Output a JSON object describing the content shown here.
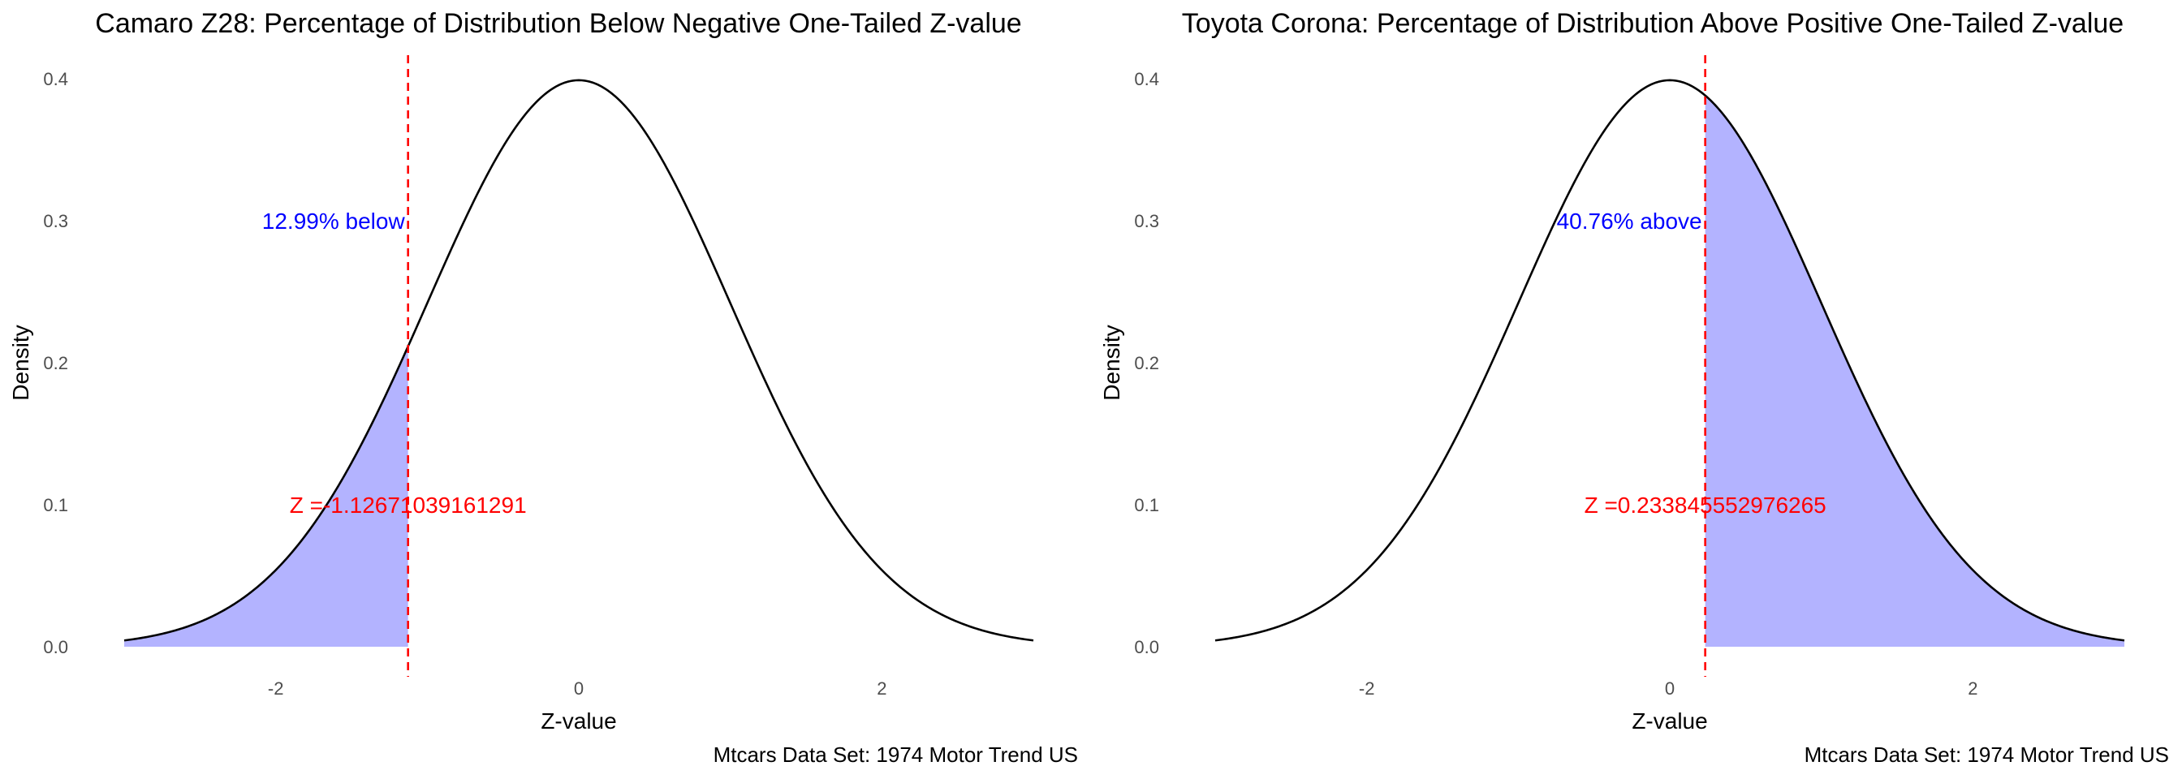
{
  "chart_data": [
    {
      "type": "area",
      "title": "Camaro Z28: Percentage of Distribution Below Negative One-Tailed Z-value",
      "xlabel": "Z-value",
      "ylabel": "Density",
      "xlim": [
        -3,
        3
      ],
      "ylim": [
        0,
        0.4
      ],
      "x_ticks": [
        -2,
        0,
        2
      ],
      "y_ticks": [
        0.0,
        0.1,
        0.2,
        0.3,
        0.4
      ],
      "x_tick_labels": [
        "-2",
        "0",
        "2"
      ],
      "y_tick_labels": [
        "0.0",
        "0.1",
        "0.2",
        "0.3",
        "0.4"
      ],
      "grid": false,
      "curve": "standard normal density",
      "z_value": -1.12671039161291,
      "shaded": "below",
      "percent_label": "12.99% below",
      "percent_label_position": {
        "x": -1.12671039161291,
        "y": 0.3
      },
      "z_label": "Z =-1.12671039161291",
      "z_label_position": {
        "x": -1.12671039161291,
        "y": 0.1
      },
      "caption": "Mtcars Data Set: 1974 Motor Trend US",
      "colors": {
        "curve": "#000000",
        "fill": "#b3b3ff",
        "z_line": "#ff0000",
        "percent_text": "#0000ff",
        "z_text": "#ff0000"
      }
    },
    {
      "type": "area",
      "title": "Toyota Corona: Percentage of Distribution Above Positive One-Tailed Z-value",
      "xlabel": "Z-value",
      "ylabel": "Density",
      "xlim": [
        -3,
        3
      ],
      "ylim": [
        0,
        0.4
      ],
      "x_ticks": [
        -2,
        0,
        2
      ],
      "y_ticks": [
        0.0,
        0.1,
        0.2,
        0.3,
        0.4
      ],
      "x_tick_labels": [
        "-2",
        "0",
        "2"
      ],
      "y_tick_labels": [
        "0.0",
        "0.1",
        "0.2",
        "0.3",
        "0.4"
      ],
      "grid": false,
      "curve": "standard normal density",
      "z_value": 0.233845552976265,
      "shaded": "above",
      "percent_label": "40.76% above",
      "percent_label_position": {
        "x": 0.233845552976265,
        "y": 0.3
      },
      "z_label": "Z =0.233845552976265",
      "z_label_position": {
        "x": 0.233845552976265,
        "y": 0.1
      },
      "caption": "Mtcars Data Set: 1974 Motor Trend US",
      "colors": {
        "curve": "#000000",
        "fill": "#b3b3ff",
        "z_line": "#ff0000",
        "percent_text": "#0000ff",
        "z_text": "#ff0000"
      }
    }
  ]
}
